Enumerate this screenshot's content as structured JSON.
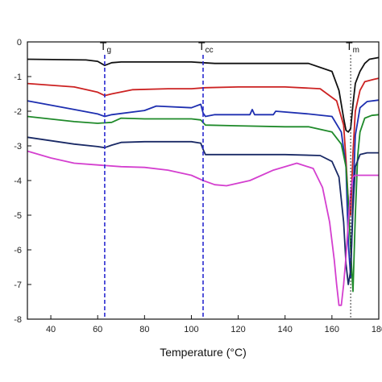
{
  "chart_data": {
    "type": "line",
    "xlabel": "Temperature (°C)",
    "ylabel": "",
    "xlim": [
      30,
      180
    ],
    "ylim": [
      -8,
      0
    ],
    "x_ticks": [
      40,
      60,
      80,
      100,
      120,
      140,
      160,
      180
    ],
    "x_tick_labels": [
      "40",
      "60",
      "80",
      "100",
      "120",
      "140",
      "160",
      "180"
    ],
    "y_ticks": [
      0,
      -1,
      -2,
      -3,
      -4,
      -5,
      -6,
      -7,
      -8
    ],
    "y_tick_labels": [
      "0",
      "-1",
      "-2",
      "-3",
      "-4",
      "-5",
      "-6",
      "-7",
      "-8"
    ],
    "grid": false,
    "annotations": [
      {
        "label": "T",
        "sub": "g",
        "x": 63,
        "line_style": "dashed",
        "color": "#2a2ad0"
      },
      {
        "label": "T",
        "sub": "cc",
        "x": 105,
        "line_style": "dashed",
        "color": "#2a2ad0"
      },
      {
        "label": "T",
        "sub": "m",
        "x": 168,
        "line_style": "dotted",
        "color": "#333333"
      }
    ],
    "series": [
      {
        "color": "#111111",
        "x": [
          30,
          55,
          60,
          63,
          66,
          70,
          90,
          100,
          105,
          110,
          130,
          150,
          160,
          163,
          165,
          166,
          167,
          168,
          169,
          170,
          172,
          174,
          176,
          180
        ],
        "y": [
          -0.5,
          -0.52,
          -0.56,
          -0.68,
          -0.6,
          -0.58,
          -0.58,
          -0.58,
          -0.6,
          -0.62,
          -0.62,
          -0.62,
          -0.85,
          -1.4,
          -2.2,
          -2.55,
          -2.6,
          -2.5,
          -1.8,
          -1.2,
          -0.85,
          -0.62,
          -0.5,
          -0.45
        ]
      },
      {
        "color": "#cc2222",
        "x": [
          30,
          50,
          60,
          63,
          66,
          75,
          90,
          100,
          106,
          120,
          140,
          155,
          162,
          165,
          166,
          167,
          168,
          169,
          170,
          172,
          174,
          178,
          180
        ],
        "y": [
          -1.2,
          -1.3,
          -1.45,
          -1.55,
          -1.5,
          -1.38,
          -1.35,
          -1.35,
          -1.32,
          -1.3,
          -1.3,
          -1.35,
          -1.7,
          -2.4,
          -3.4,
          -4.6,
          -5.0,
          -3.2,
          -2.0,
          -1.4,
          -1.15,
          -1.08,
          -1.05
        ]
      },
      {
        "color": "#1e2fb0",
        "x": [
          30,
          50,
          60,
          63,
          66,
          80,
          85,
          100,
          104,
          105,
          106,
          110,
          125,
          126,
          127,
          135,
          136,
          150,
          160,
          164,
          166,
          167,
          168,
          169,
          170,
          172,
          175,
          180
        ],
        "y": [
          -1.7,
          -1.95,
          -2.08,
          -2.15,
          -2.1,
          -1.98,
          -1.85,
          -1.9,
          -1.8,
          -2.05,
          -2.15,
          -2.1,
          -2.1,
          -1.95,
          -2.1,
          -2.1,
          -2.0,
          -2.08,
          -2.15,
          -2.6,
          -3.6,
          -5.8,
          -6.8,
          -4.5,
          -2.7,
          -1.9,
          -1.72,
          -1.68
        ]
      },
      {
        "color": "#1f8a2a",
        "x": [
          30,
          50,
          60,
          66,
          70,
          80,
          100,
          104,
          106,
          120,
          140,
          150,
          160,
          164,
          166,
          167,
          168,
          169,
          170,
          171,
          172,
          174,
          177,
          180
        ],
        "y": [
          -2.15,
          -2.3,
          -2.35,
          -2.32,
          -2.2,
          -2.22,
          -2.22,
          -2.25,
          -2.4,
          -2.42,
          -2.45,
          -2.45,
          -2.6,
          -2.95,
          -3.6,
          -4.6,
          -6.0,
          -7.2,
          -5.0,
          -3.3,
          -2.6,
          -2.2,
          -2.12,
          -2.1
        ]
      },
      {
        "color": "#1a2a66",
        "x": [
          30,
          50,
          60,
          63,
          66,
          70,
          80,
          100,
          104,
          105,
          106,
          120,
          140,
          155,
          160,
          163,
          165,
          166,
          167,
          168,
          169,
          170,
          172,
          175,
          180
        ],
        "y": [
          -2.75,
          -2.95,
          -3.02,
          -3.05,
          -2.98,
          -2.9,
          -2.88,
          -2.88,
          -2.92,
          -3.1,
          -3.25,
          -3.25,
          -3.25,
          -3.28,
          -3.45,
          -3.9,
          -5.2,
          -6.4,
          -7.0,
          -6.6,
          -4.8,
          -3.6,
          -3.25,
          -3.2,
          -3.2
        ]
      },
      {
        "color": "#d43fcf",
        "x": [
          30,
          40,
          50,
          60,
          70,
          80,
          90,
          100,
          105,
          110,
          115,
          125,
          135,
          145,
          152,
          156,
          159,
          161,
          162,
          163,
          164,
          165,
          166,
          167,
          168,
          169,
          170,
          172,
          175,
          180
        ],
        "y": [
          -3.15,
          -3.35,
          -3.5,
          -3.55,
          -3.6,
          -3.62,
          -3.7,
          -3.85,
          -4.0,
          -4.12,
          -4.15,
          -4.0,
          -3.7,
          -3.5,
          -3.65,
          -4.2,
          -5.2,
          -6.3,
          -7.0,
          -7.6,
          -7.6,
          -7.0,
          -6.2,
          -5.2,
          -4.3,
          -3.9,
          -3.85,
          -3.85,
          -3.85,
          -3.85
        ]
      }
    ]
  }
}
